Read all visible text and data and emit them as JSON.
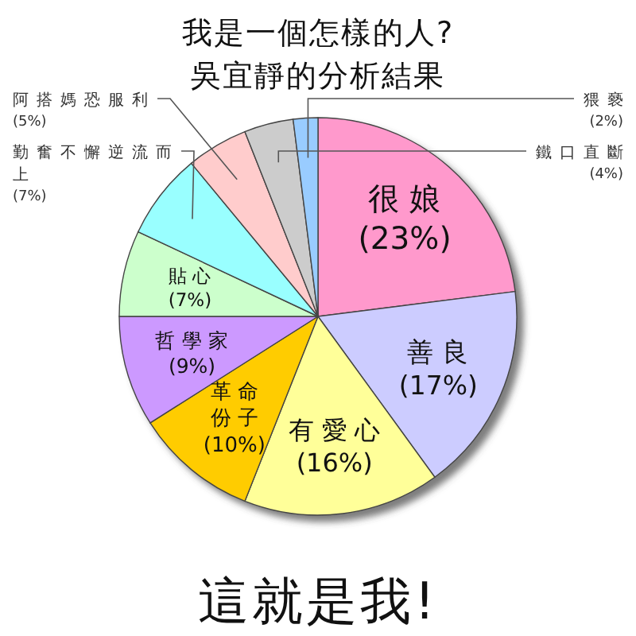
{
  "chart_data": {
    "type": "pie",
    "title": "我是一個怎樣的人?",
    "subtitle": "吳宜靜的分析結果",
    "categories": [
      "很娘",
      "善良",
      "有愛心",
      "革命份子",
      "哲學家",
      "貼心",
      "勤奮不懈逆流而上",
      "阿搭媽恐服利",
      "鐵口直斷",
      "猥褻"
    ],
    "values": [
      23,
      17,
      16,
      10,
      9,
      7,
      7,
      5,
      4,
      2
    ],
    "colors": [
      "#ff99cc",
      "#ccccff",
      "#ffff99",
      "#ffcc00",
      "#cc99ff",
      "#ccffcc",
      "#99ffff",
      "#ffcccc",
      "#cccccc",
      "#99ccff"
    ],
    "value_labels": [
      "(23%)",
      "(17%)",
      "(16%)",
      "(10%)",
      "(9%)",
      "(7%)",
      "(7%)",
      "(5%)",
      "(4%)",
      "(2%)"
    ],
    "annotations": [
      "這就是我!"
    ]
  }
}
